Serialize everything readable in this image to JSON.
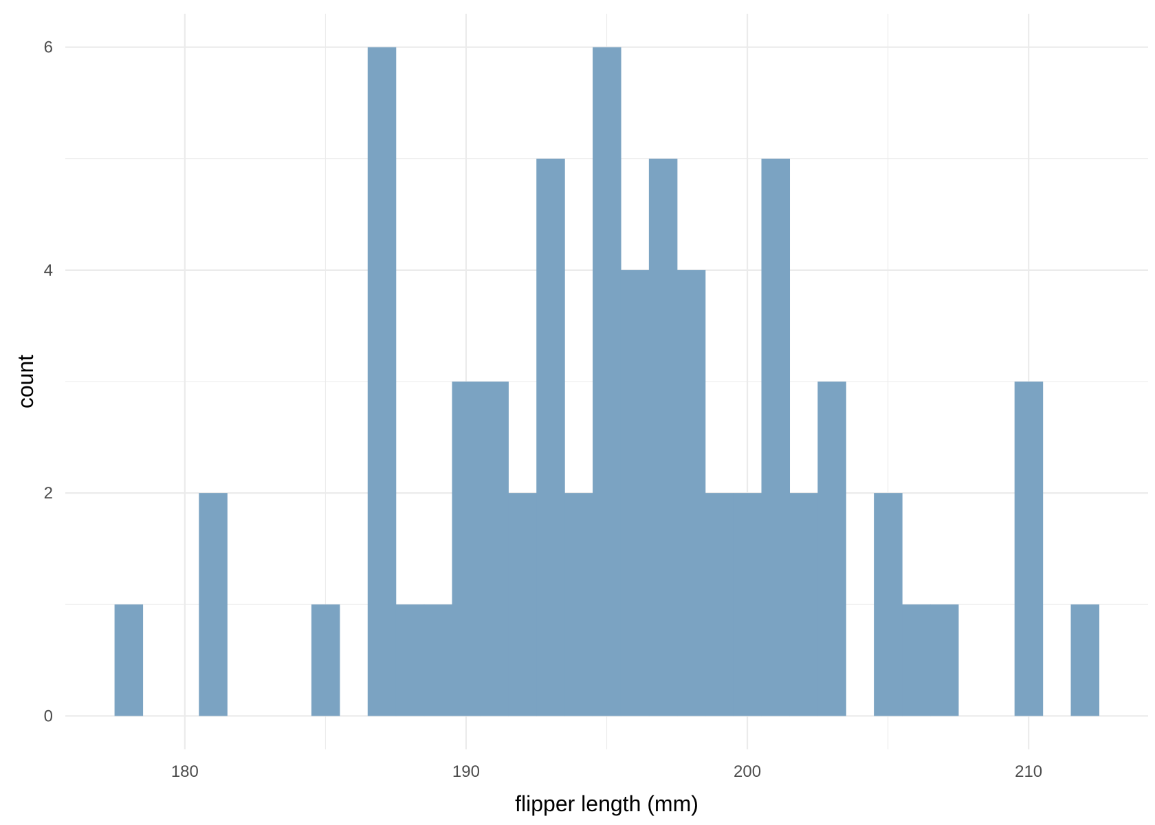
{
  "chart_data": {
    "type": "bar",
    "subtype": "histogram",
    "title": "",
    "xlabel": "flipper length (mm)",
    "ylabel": "count",
    "xlim": [
      175.75,
      214.25
    ],
    "ylim": [
      -0.3,
      6.3
    ],
    "x_ticks": [
      180,
      190,
      200,
      210
    ],
    "x_minor_ticks": [
      185,
      195,
      205
    ],
    "y_ticks": [
      0,
      2,
      4,
      6
    ],
    "y_minor_ticks": [
      1,
      3,
      5
    ],
    "grid": true,
    "bin_width": 1,
    "bar_color": "#7ba3c2",
    "bins": [
      {
        "start": 177.5,
        "end": 178.5,
        "count": 1
      },
      {
        "start": 178.5,
        "end": 179.5,
        "count": 0
      },
      {
        "start": 179.5,
        "end": 180.5,
        "count": 0
      },
      {
        "start": 180.5,
        "end": 181.5,
        "count": 2
      },
      {
        "start": 181.5,
        "end": 182.5,
        "count": 0
      },
      {
        "start": 182.5,
        "end": 183.5,
        "count": 0
      },
      {
        "start": 183.5,
        "end": 184.5,
        "count": 0
      },
      {
        "start": 184.5,
        "end": 185.5,
        "count": 1
      },
      {
        "start": 185.5,
        "end": 186.5,
        "count": 0
      },
      {
        "start": 186.5,
        "end": 187.5,
        "count": 6
      },
      {
        "start": 187.5,
        "end": 188.5,
        "count": 1
      },
      {
        "start": 188.5,
        "end": 189.5,
        "count": 1
      },
      {
        "start": 189.5,
        "end": 190.5,
        "count": 3
      },
      {
        "start": 190.5,
        "end": 191.5,
        "count": 3
      },
      {
        "start": 191.5,
        "end": 192.5,
        "count": 2
      },
      {
        "start": 192.5,
        "end": 193.5,
        "count": 5
      },
      {
        "start": 193.5,
        "end": 194.5,
        "count": 2
      },
      {
        "start": 194.5,
        "end": 195.5,
        "count": 6
      },
      {
        "start": 195.5,
        "end": 196.5,
        "count": 4
      },
      {
        "start": 196.5,
        "end": 197.5,
        "count": 5
      },
      {
        "start": 197.5,
        "end": 198.5,
        "count": 4
      },
      {
        "start": 198.5,
        "end": 199.5,
        "count": 2
      },
      {
        "start": 199.5,
        "end": 200.5,
        "count": 2
      },
      {
        "start": 200.5,
        "end": 201.5,
        "count": 5
      },
      {
        "start": 201.5,
        "end": 202.5,
        "count": 2
      },
      {
        "start": 202.5,
        "end": 203.5,
        "count": 3
      },
      {
        "start": 203.5,
        "end": 204.5,
        "count": 0
      },
      {
        "start": 204.5,
        "end": 205.5,
        "count": 2
      },
      {
        "start": 205.5,
        "end": 206.5,
        "count": 1
      },
      {
        "start": 206.5,
        "end": 207.5,
        "count": 1
      },
      {
        "start": 207.5,
        "end": 208.5,
        "count": 0
      },
      {
        "start": 208.5,
        "end": 209.5,
        "count": 0
      },
      {
        "start": 209.5,
        "end": 210.5,
        "count": 3
      },
      {
        "start": 210.5,
        "end": 211.5,
        "count": 0
      },
      {
        "start": 211.5,
        "end": 212.5,
        "count": 1
      }
    ]
  }
}
